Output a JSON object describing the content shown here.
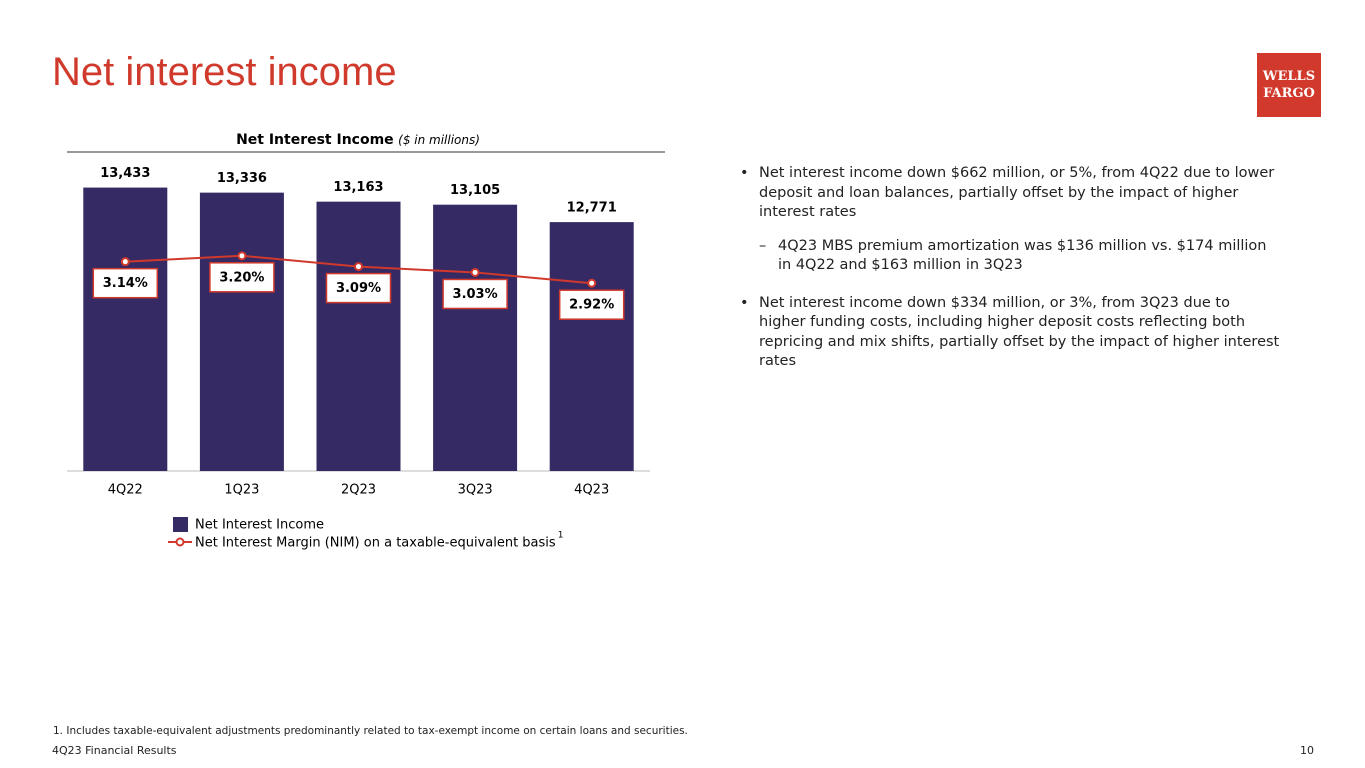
{
  "title": "Net interest income",
  "logo": [
    "WELLS",
    "FARGO"
  ],
  "chart_data": {
    "type": "bar",
    "title": "Net Interest Income",
    "title_note": "($ in millions)",
    "categories": [
      "4Q22",
      "1Q23",
      "2Q23",
      "3Q23",
      "4Q23"
    ],
    "series": [
      {
        "name": "Net Interest Income",
        "color": "#352a63",
        "values": [
          13433,
          13336,
          13163,
          13105,
          12771
        ],
        "value_labels": [
          "13,433",
          "13,336",
          "13,163",
          "13,105",
          "12,771"
        ]
      },
      {
        "name": "Net Interest Margin (NIM) on a taxable-equivalent basis",
        "type": "line",
        "axis": "y2",
        "color": "#d0392b",
        "values": [
          3.14,
          3.2,
          3.09,
          3.03,
          2.92
        ],
        "value_labels": [
          "3.14%",
          "3.20%",
          "3.09%",
          "3.03%",
          "2.92%"
        ]
      }
    ],
    "ylim": [
      8000,
      14000
    ],
    "y2lim": [
      1,
      4.2
    ],
    "legend_note": "1"
  },
  "bullets": [
    {
      "text": "Net interest income down $662 million, or 5%, from 4Q22 due to lower deposit and loan balances, partially offset by the impact of higher interest rates",
      "subitems": [
        "4Q23 MBS premium amortization was $136 million vs. $174 million in 4Q22 and $163 million in 3Q23"
      ]
    },
    {
      "text": "Net interest income down $334 million, or 3%, from 3Q23 due to higher funding costs, including higher deposit costs reflecting both repricing and mix shifts, partially offset by the impact of higher interest rates",
      "subitems": []
    }
  ],
  "footnote": "1. Includes taxable-equivalent adjustments predominantly related to tax-exempt income on certain loans and securities.",
  "footer": "4Q23 Financial Results",
  "page_number": "10"
}
